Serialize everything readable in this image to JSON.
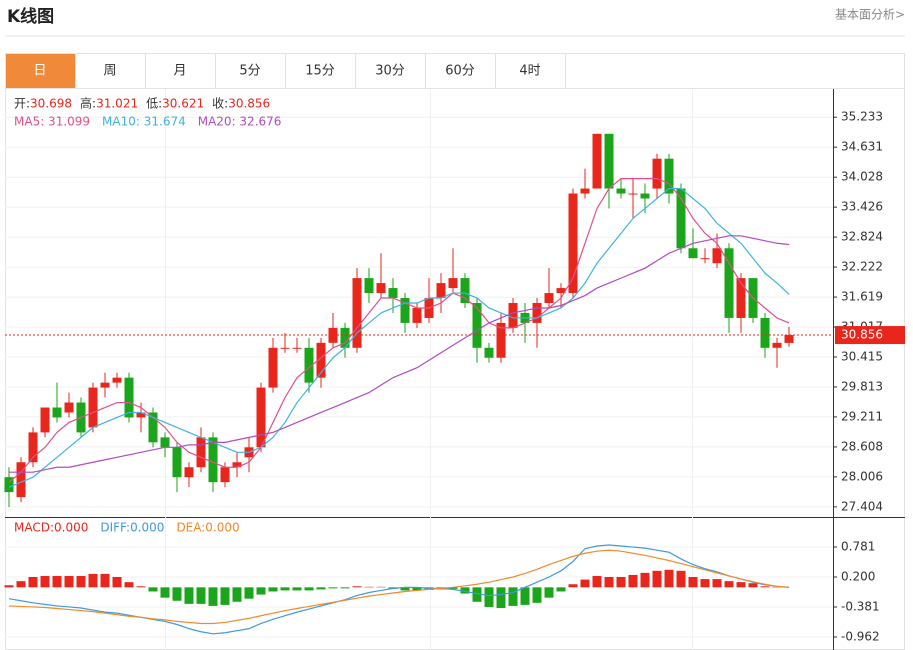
{
  "header": {
    "title": "K线图",
    "link": "基本面分析>"
  },
  "tabs": [
    "日",
    "周",
    "月",
    "5分",
    "15分",
    "30分",
    "60分",
    "4时"
  ],
  "active_tab": 0,
  "chart_data": [
    {
      "type": "candlestick",
      "info": [
        {
          "label": "开:",
          "value": "30.698"
        },
        {
          "label": "高:",
          "value": "31.021"
        },
        {
          "label": "低:",
          "value": "30.621"
        },
        {
          "label": "收:",
          "value": "30.856"
        }
      ],
      "up_color": "#e8261c",
      "down_color": "#1aa51a",
      "open": [
        28.0,
        27.6,
        28.3,
        28.9,
        29.4,
        29.3,
        29.5,
        29.0,
        29.8,
        29.9,
        30.0,
        29.2,
        29.3,
        28.8,
        28.6,
        28.0,
        28.2,
        28.8,
        27.9,
        28.2,
        28.4,
        28.6,
        29.8,
        30.6,
        30.6,
        30.6,
        30.0,
        30.7,
        31.0,
        30.6,
        32.0,
        31.7,
        31.8,
        31.6,
        31.1,
        31.2,
        31.6,
        31.8,
        32.0,
        31.5,
        30.6,
        30.4,
        31.0,
        31.3,
        31.1,
        31.5,
        31.7,
        31.7,
        33.7,
        33.8,
        34.9,
        33.8,
        33.7,
        33.7,
        33.8,
        34.4,
        33.8,
        32.6,
        32.4,
        32.3,
        32.6,
        31.2,
        32.0,
        31.2,
        30.6,
        30.698
      ],
      "high": [
        28.2,
        28.4,
        29.0,
        29.4,
        29.9,
        29.7,
        29.6,
        29.9,
        30.1,
        30.1,
        30.1,
        29.5,
        29.4,
        28.9,
        28.7,
        28.3,
        29.0,
        28.9,
        28.3,
        28.5,
        28.8,
        29.9,
        30.8,
        30.9,
        30.8,
        30.8,
        30.8,
        31.3,
        31.1,
        32.2,
        32.2,
        32.5,
        32.0,
        31.7,
        31.5,
        32.0,
        32.1,
        32.6,
        32.1,
        31.6,
        30.7,
        31.3,
        31.6,
        31.5,
        31.6,
        32.2,
        31.9,
        33.8,
        34.2,
        34.9,
        34.9,
        34.0,
        34.0,
        33.9,
        34.5,
        34.5,
        33.9,
        33.0,
        32.6,
        32.9,
        32.7,
        32.1,
        32.0,
        31.3,
        30.8,
        31.021
      ],
      "low": [
        27.4,
        27.5,
        28.2,
        28.8,
        29.1,
        29.2,
        28.8,
        28.9,
        29.6,
        29.8,
        29.1,
        28.9,
        28.6,
        28.4,
        27.7,
        27.8,
        28.1,
        27.7,
        27.8,
        28.0,
        28.1,
        28.5,
        29.7,
        30.5,
        30.5,
        29.7,
        29.8,
        30.6,
        30.4,
        30.5,
        31.5,
        31.6,
        31.3,
        30.9,
        31.0,
        31.1,
        31.3,
        31.7,
        31.4,
        30.3,
        30.3,
        30.3,
        30.9,
        30.7,
        30.6,
        31.4,
        31.4,
        31.6,
        33.6,
        33.8,
        33.4,
        33.6,
        33.2,
        33.3,
        33.6,
        33.5,
        32.5,
        32.4,
        32.3,
        32.2,
        30.9,
        30.9,
        31.1,
        30.4,
        30.2,
        30.621
      ],
      "close": [
        27.7,
        28.3,
        28.9,
        29.4,
        29.2,
        29.5,
        28.9,
        29.8,
        29.9,
        30.0,
        29.2,
        29.3,
        28.7,
        28.6,
        28.0,
        28.2,
        28.8,
        27.9,
        28.2,
        28.3,
        28.6,
        29.8,
        30.6,
        30.6,
        30.6,
        29.9,
        30.7,
        31.0,
        30.6,
        32.0,
        31.7,
        31.9,
        31.6,
        31.1,
        31.4,
        31.6,
        31.9,
        32.0,
        31.5,
        30.6,
        30.4,
        31.1,
        31.5,
        31.1,
        31.5,
        31.7,
        31.8,
        33.7,
        33.8,
        34.9,
        33.8,
        33.7,
        33.7,
        33.6,
        34.4,
        33.7,
        32.6,
        32.4,
        32.4,
        32.6,
        31.2,
        32.0,
        31.2,
        30.6,
        30.7,
        30.856
      ],
      "series": [
        {
          "name": "MA5: 31.099",
          "color": "#e0508c",
          "values": [
            27.9,
            28.1,
            28.4,
            28.6,
            28.9,
            29.1,
            29.2,
            29.3,
            29.4,
            29.5,
            29.5,
            29.4,
            29.2,
            29.0,
            28.7,
            28.5,
            28.4,
            28.3,
            28.2,
            28.2,
            28.3,
            28.6,
            29.1,
            29.6,
            30.0,
            30.2,
            30.4,
            30.6,
            30.7,
            31.0,
            31.3,
            31.6,
            31.6,
            31.5,
            31.4,
            31.4,
            31.5,
            31.7,
            31.6,
            31.4,
            31.1,
            31.0,
            31.0,
            31.1,
            31.2,
            31.4,
            31.6,
            32.0,
            32.7,
            33.4,
            33.8,
            34.0,
            34.0,
            34.0,
            34.0,
            33.9,
            33.6,
            33.2,
            32.9,
            32.7,
            32.3,
            31.9,
            31.6,
            31.4,
            31.2,
            31.099
          ]
        },
        {
          "name": "MA10: 31.674",
          "color": "#3fb4d8",
          "values": [
            27.8,
            27.9,
            28.0,
            28.2,
            28.4,
            28.6,
            28.8,
            29.0,
            29.1,
            29.2,
            29.3,
            29.3,
            29.2,
            29.1,
            29.0,
            28.9,
            28.8,
            28.7,
            28.6,
            28.5,
            28.5,
            28.6,
            28.8,
            29.1,
            29.5,
            29.8,
            30.1,
            30.4,
            30.6,
            30.9,
            31.1,
            31.3,
            31.4,
            31.5,
            31.5,
            31.6,
            31.6,
            31.7,
            31.7,
            31.6,
            31.4,
            31.3,
            31.2,
            31.2,
            31.2,
            31.3,
            31.4,
            31.6,
            31.9,
            32.3,
            32.6,
            32.9,
            33.2,
            33.4,
            33.6,
            33.8,
            33.8,
            33.6,
            33.4,
            33.1,
            32.9,
            32.7,
            32.4,
            32.1,
            31.9,
            31.674
          ]
        },
        {
          "name": "MA20: 32.676",
          "color": "#b04cc0",
          "values": [
            28.1,
            28.1,
            28.1,
            28.15,
            28.2,
            28.2,
            28.25,
            28.3,
            28.35,
            28.4,
            28.45,
            28.5,
            28.55,
            28.6,
            28.6,
            28.65,
            28.65,
            28.7,
            28.7,
            28.75,
            28.8,
            28.85,
            28.9,
            29.0,
            29.1,
            29.2,
            29.3,
            29.4,
            29.5,
            29.6,
            29.7,
            29.85,
            30.0,
            30.1,
            30.2,
            30.35,
            30.5,
            30.65,
            30.8,
            30.95,
            31.1,
            31.2,
            31.3,
            31.35,
            31.4,
            31.4,
            31.45,
            31.55,
            31.65,
            31.8,
            31.9,
            32.0,
            32.1,
            32.2,
            32.35,
            32.5,
            32.6,
            32.7,
            32.75,
            32.8,
            32.85,
            32.85,
            32.8,
            32.75,
            32.7,
            32.676
          ]
        }
      ],
      "last_price": 30.856,
      "last_price_color": "#e8261c",
      "ylim": [
        27.2,
        35.78
      ],
      "yticks": [
        35.233,
        34.631,
        34.028,
        33.426,
        32.824,
        32.222,
        31.619,
        31.017,
        30.415,
        29.813,
        29.211,
        28.608,
        28.006,
        27.404
      ],
      "grid": true
    },
    {
      "type": "macd",
      "series": [
        {
          "name": "MACD:0.000",
          "color": "#e8261c",
          "down_color": "#1aa51a",
          "values": [
            0.04,
            0.12,
            0.2,
            0.22,
            0.22,
            0.22,
            0.22,
            0.26,
            0.26,
            0.2,
            0.1,
            0.02,
            -0.08,
            -0.2,
            -0.26,
            -0.32,
            -0.32,
            -0.36,
            -0.34,
            -0.28,
            -0.22,
            -0.14,
            -0.08,
            -0.06,
            -0.06,
            -0.06,
            -0.04,
            -0.02,
            -0.02,
            0.02,
            0.01,
            0.01,
            -0.03,
            -0.06,
            -0.06,
            -0.05,
            -0.04,
            -0.03,
            -0.12,
            -0.28,
            -0.38,
            -0.4,
            -0.36,
            -0.34,
            -0.3,
            -0.2,
            -0.08,
            0.06,
            0.15,
            0.22,
            0.2,
            0.2,
            0.24,
            0.28,
            0.32,
            0.34,
            0.32,
            0.2,
            0.16,
            0.16,
            0.12,
            0.1,
            0.08,
            0.02,
            0.01,
            0.0
          ]
        },
        {
          "name": "DIFF:0.000",
          "color": "#3d9be0",
          "values": [
            -0.22,
            -0.26,
            -0.3,
            -0.33,
            -0.36,
            -0.38,
            -0.4,
            -0.44,
            -0.48,
            -0.5,
            -0.54,
            -0.58,
            -0.62,
            -0.66,
            -0.72,
            -0.8,
            -0.86,
            -0.9,
            -0.88,
            -0.84,
            -0.8,
            -0.7,
            -0.62,
            -0.55,
            -0.48,
            -0.42,
            -0.36,
            -0.3,
            -0.24,
            -0.16,
            -0.1,
            -0.06,
            -0.02,
            0.0,
            0.0,
            -0.02,
            -0.02,
            -0.04,
            -0.08,
            -0.12,
            -0.16,
            -0.14,
            -0.1,
            0.0,
            0.1,
            0.2,
            0.32,
            0.5,
            0.75,
            0.8,
            0.82,
            0.8,
            0.78,
            0.76,
            0.72,
            0.68,
            0.55,
            0.44,
            0.36,
            0.3,
            0.22,
            0.16,
            0.1,
            0.05,
            0.02,
            0.0
          ]
        },
        {
          "name": "DEA:0.000",
          "color": "#f08a2a",
          "values": [
            -0.36,
            -0.37,
            -0.38,
            -0.39,
            -0.41,
            -0.43,
            -0.45,
            -0.47,
            -0.5,
            -0.53,
            -0.56,
            -0.58,
            -0.61,
            -0.63,
            -0.66,
            -0.68,
            -0.7,
            -0.7,
            -0.68,
            -0.64,
            -0.6,
            -0.55,
            -0.5,
            -0.45,
            -0.41,
            -0.37,
            -0.33,
            -0.29,
            -0.25,
            -0.21,
            -0.17,
            -0.14,
            -0.11,
            -0.08,
            -0.06,
            -0.04,
            -0.02,
            0.0,
            0.03,
            0.06,
            0.1,
            0.15,
            0.2,
            0.27,
            0.35,
            0.44,
            0.52,
            0.6,
            0.66,
            0.7,
            0.72,
            0.7,
            0.66,
            0.62,
            0.57,
            0.52,
            0.46,
            0.4,
            0.34,
            0.28,
            0.22,
            0.16,
            0.11,
            0.06,
            0.02,
            0.0
          ]
        }
      ],
      "ylim": [
        -1.175,
        1.343
      ],
      "yticks": [
        0.781,
        {
          "value": 0.2,
          "label": "0.200"
        },
        -0.381,
        -0.962
      ],
      "grid": true
    }
  ]
}
